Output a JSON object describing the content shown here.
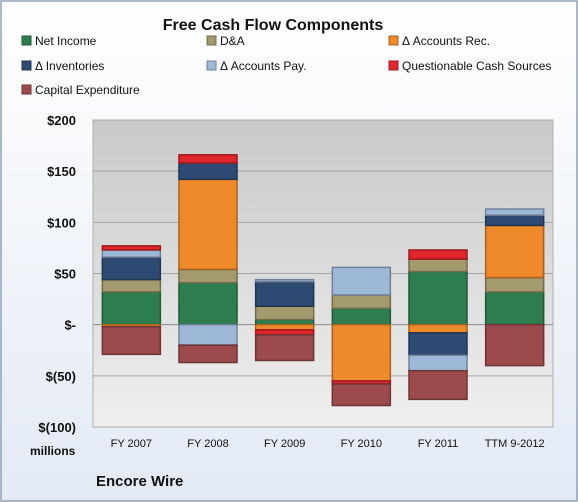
{
  "chart_data": {
    "type": "bar",
    "stacked": true,
    "title": "Free Cash Flow Components",
    "unit_label": "millions",
    "company": "Encore Wire",
    "categories": [
      "FY 2007",
      "FY 2008",
      "FY 2009",
      "FY 2010",
      "FY 2011",
      "TTM 9-2012"
    ],
    "ylim": [
      -100,
      200
    ],
    "yticks": [
      200,
      150,
      100,
      50,
      0,
      -50,
      -100
    ],
    "ytick_labels": [
      "$200",
      "$150",
      "$100",
      "$50",
      "$-",
      "$(50)",
      "$(100)"
    ],
    "grid": true,
    "legend_position": "top",
    "series": [
      {
        "name": "Net Income",
        "color": "#2e7d4f",
        "values": [
          32,
          41,
          5,
          16,
          52,
          32
        ]
      },
      {
        "name": "D&A",
        "color": "#a39a6e",
        "values": [
          12,
          13,
          13,
          13,
          12,
          14
        ]
      },
      {
        "name": "Δ Accounts Rec.",
        "color": "#ef8a2a",
        "values": [
          -2,
          88,
          -5,
          -55,
          -8,
          51
        ]
      },
      {
        "name": "Δ Inventories",
        "color": "#2f4a72",
        "values": [
          22,
          16,
          24,
          0,
          -22,
          10
        ]
      },
      {
        "name": "Δ Accounts Pay.",
        "color": "#9eb8d8",
        "values": [
          7,
          -20,
          2,
          27,
          -15,
          6
        ]
      },
      {
        "name": "Questionable Cash Sources",
        "color": "#e0252b",
        "values": [
          4,
          8,
          -5,
          -3,
          9,
          0
        ]
      },
      {
        "name": "Capital Expenditure",
        "color": "#9c4a4c",
        "values": [
          -27,
          -17,
          -25,
          -21,
          -28,
          -40
        ]
      }
    ]
  }
}
